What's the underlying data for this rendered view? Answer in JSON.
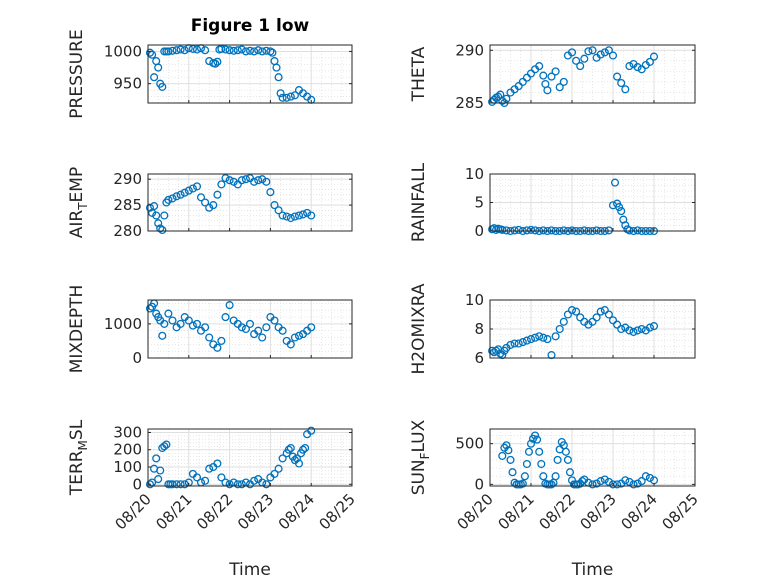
{
  "figure": {
    "title": "Figure 1 low",
    "marker_color": "#0072BD"
  },
  "chart_data": [
    {
      "type": "scatter",
      "title": "Figure 1 low",
      "ylabel": "PRESSURE",
      "ylim": [
        920,
        1010
      ],
      "yticks": [
        "950",
        "1000"
      ],
      "ytick_values": [
        950,
        1000
      ],
      "xlim": [
        0,
        5
      ],
      "grid": true,
      "x": [
        0.05,
        0.1,
        0.15,
        0.2,
        0.25,
        0.3,
        0.35,
        0.4,
        0.45,
        0.5,
        0.6,
        0.7,
        0.8,
        0.9,
        1.0,
        1.1,
        1.2,
        1.3,
        1.4,
        1.5,
        1.6,
        1.65,
        1.7,
        1.75,
        1.8,
        1.9,
        2.0,
        2.1,
        2.2,
        2.3,
        2.4,
        2.5,
        2.6,
        2.7,
        2.8,
        2.9,
        3.0,
        3.05,
        3.1,
        3.15,
        3.2,
        3.25,
        3.3,
        3.4,
        3.5,
        3.6,
        3.7,
        3.8,
        3.9,
        4.0
      ],
      "y": [
        998,
        995,
        960,
        985,
        975,
        950,
        945,
        1000,
        1000,
        1000,
        1001,
        1002,
        1003,
        1002,
        1005,
        1004,
        1003,
        1005,
        1002,
        985,
        982,
        981,
        984,
        1003,
        1004,
        1003,
        1002,
        1001,
        1002,
        1003,
        1000,
        1001,
        1000,
        1002,
        1000,
        1001,
        1000,
        998,
        985,
        975,
        960,
        935,
        928,
        928,
        930,
        932,
        940,
        935,
        930,
        925
      ]
    },
    {
      "type": "scatter",
      "ylabel": "THETA",
      "ylim": [
        285,
        290.5
      ],
      "yticks": [
        "285",
        "290"
      ],
      "ytick_values": [
        285,
        290
      ],
      "xlim": [
        0,
        5
      ],
      "grid": true,
      "x": [
        0.05,
        0.1,
        0.15,
        0.2,
        0.25,
        0.3,
        0.35,
        0.4,
        0.5,
        0.6,
        0.7,
        0.8,
        0.9,
        1.0,
        1.1,
        1.2,
        1.3,
        1.35,
        1.4,
        1.5,
        1.6,
        1.7,
        1.8,
        1.9,
        2.0,
        2.1,
        2.2,
        2.3,
        2.4,
        2.5,
        2.6,
        2.7,
        2.8,
        2.9,
        3.0,
        3.1,
        3.2,
        3.3,
        3.4,
        3.5,
        3.6,
        3.7,
        3.8,
        3.9,
        4.0
      ],
      "y": [
        285.1,
        285.3,
        285.5,
        285.6,
        285.8,
        285.2,
        285.0,
        285.4,
        286.0,
        286.3,
        286.6,
        287.0,
        287.4,
        287.8,
        288.2,
        288.5,
        287.6,
        286.8,
        286.2,
        287.5,
        288.0,
        286.5,
        287.0,
        289.5,
        289.8,
        289.0,
        288.5,
        289.2,
        289.9,
        290.0,
        289.3,
        289.6,
        289.8,
        290.0,
        289.5,
        287.5,
        286.9,
        286.3,
        288.5,
        288.7,
        288.4,
        288.2,
        288.6,
        288.9,
        289.4
      ]
    },
    {
      "type": "scatter",
      "ylabel": "AIR_TEMP",
      "ylabel_main": "AIR",
      "ylabel_sub": "T",
      "ylabel_tail": "EMP",
      "ylim": [
        280,
        291
      ],
      "yticks": [
        "280",
        "285",
        "290"
      ],
      "ytick_values": [
        280,
        285,
        290
      ],
      "xlim": [
        0,
        5
      ],
      "grid": true,
      "x": [
        0.05,
        0.1,
        0.15,
        0.2,
        0.25,
        0.3,
        0.35,
        0.4,
        0.45,
        0.5,
        0.6,
        0.7,
        0.8,
        0.9,
        1.0,
        1.1,
        1.2,
        1.3,
        1.4,
        1.5,
        1.6,
        1.7,
        1.8,
        1.9,
        2.0,
        2.1,
        2.2,
        2.3,
        2.4,
        2.5,
        2.6,
        2.7,
        2.8,
        2.9,
        3.0,
        3.1,
        3.2,
        3.3,
        3.4,
        3.5,
        3.6,
        3.7,
        3.8,
        3.9,
        4.0
      ],
      "y": [
        284.5,
        283.5,
        284.8,
        283.0,
        281.5,
        280.5,
        280.2,
        283.0,
        285.5,
        286.0,
        286.3,
        286.7,
        287.0,
        287.4,
        287.8,
        288.2,
        288.6,
        286.5,
        285.5,
        284.5,
        285.0,
        287.0,
        289.0,
        290.2,
        289.8,
        289.5,
        289.0,
        289.8,
        290.0,
        290.2,
        289.5,
        289.8,
        290.0,
        289.5,
        287.5,
        285.0,
        284.0,
        283.0,
        282.8,
        282.5,
        282.8,
        283.0,
        283.2,
        283.5,
        283.0
      ]
    },
    {
      "type": "scatter",
      "ylabel": "RAINFALL",
      "ylim": [
        0,
        10
      ],
      "yticks": [
        "0",
        "5",
        "10"
      ],
      "ytick_values": [
        0,
        5,
        10
      ],
      "xlim": [
        0,
        5
      ],
      "grid": true,
      "x": [
        0.05,
        0.1,
        0.15,
        0.2,
        0.25,
        0.3,
        0.4,
        0.5,
        0.6,
        0.7,
        0.8,
        0.9,
        1.0,
        1.1,
        1.2,
        1.3,
        1.4,
        1.5,
        1.6,
        1.7,
        1.8,
        1.9,
        2.0,
        2.1,
        2.2,
        2.3,
        2.4,
        2.5,
        2.6,
        2.7,
        2.8,
        2.9,
        3.0,
        3.05,
        3.1,
        3.15,
        3.2,
        3.25,
        3.3,
        3.35,
        3.4,
        3.5,
        3.6,
        3.7,
        3.8,
        3.9,
        4.0
      ],
      "y": [
        0.3,
        0.5,
        0.2,
        0.4,
        0.3,
        0.2,
        0.1,
        0.0,
        0.1,
        0.2,
        0.0,
        0.1,
        0.2,
        0.1,
        0.0,
        0.1,
        0.0,
        0.1,
        0.0,
        0.0,
        0.1,
        0.0,
        0.1,
        0.0,
        0.0,
        0.1,
        0.0,
        0.0,
        0.1,
        0.0,
        0.0,
        0.1,
        4.5,
        8.5,
        4.8,
        4.2,
        3.5,
        2.0,
        1.0,
        0.3,
        0.1,
        0.0,
        0.1,
        0.0,
        0.0,
        0.0,
        0.0
      ]
    },
    {
      "type": "scatter",
      "ylabel": "MIXDEPTH",
      "ylim": [
        0,
        1700
      ],
      "yticks": [
        "0",
        "1000"
      ],
      "ytick_values": [
        0,
        1000
      ],
      "xlim": [
        0,
        5
      ],
      "grid": true,
      "x": [
        0.05,
        0.1,
        0.15,
        0.2,
        0.25,
        0.3,
        0.35,
        0.4,
        0.5,
        0.6,
        0.7,
        0.8,
        0.9,
        1.0,
        1.1,
        1.2,
        1.3,
        1.4,
        1.5,
        1.6,
        1.7,
        1.8,
        1.9,
        2.0,
        2.1,
        2.2,
        2.3,
        2.4,
        2.5,
        2.6,
        2.7,
        2.8,
        2.9,
        3.0,
        3.1,
        3.2,
        3.3,
        3.4,
        3.5,
        3.6,
        3.7,
        3.8,
        3.9,
        4.0
      ],
      "y": [
        1450,
        1500,
        1600,
        1300,
        1200,
        1100,
        650,
        1000,
        1300,
        1100,
        900,
        1000,
        1200,
        1100,
        950,
        1000,
        800,
        900,
        600,
        400,
        300,
        500,
        1200,
        1550,
        1100,
        1000,
        900,
        850,
        1000,
        700,
        800,
        600,
        900,
        1200,
        1100,
        900,
        800,
        500,
        400,
        600,
        650,
        700,
        800,
        900
      ]
    },
    {
      "type": "scatter",
      "ylabel": "H2OMIXRA",
      "ylim": [
        6,
        10
      ],
      "yticks": [
        "6",
        "8",
        "10"
      ],
      "ytick_values": [
        6,
        8,
        10
      ],
      "xlim": [
        0,
        5
      ],
      "grid": true,
      "x": [
        0.05,
        0.1,
        0.15,
        0.2,
        0.25,
        0.3,
        0.35,
        0.4,
        0.5,
        0.6,
        0.7,
        0.8,
        0.9,
        1.0,
        1.1,
        1.2,
        1.3,
        1.4,
        1.5,
        1.6,
        1.7,
        1.8,
        1.9,
        2.0,
        2.1,
        2.2,
        2.3,
        2.4,
        2.5,
        2.6,
        2.7,
        2.8,
        2.9,
        3.0,
        3.1,
        3.2,
        3.3,
        3.4,
        3.5,
        3.6,
        3.7,
        3.8,
        3.9,
        4.0
      ],
      "y": [
        6.5,
        6.4,
        6.5,
        6.6,
        6.3,
        6.2,
        6.5,
        6.7,
        6.9,
        7.0,
        7.0,
        7.1,
        7.2,
        7.3,
        7.4,
        7.5,
        7.4,
        7.3,
        6.2,
        7.5,
        8.0,
        8.5,
        9.0,
        9.3,
        9.2,
        8.8,
        8.5,
        8.3,
        8.5,
        8.8,
        9.2,
        9.3,
        9.0,
        8.6,
        8.3,
        8.0,
        8.1,
        7.9,
        7.8,
        7.9,
        8.0,
        7.9,
        8.1,
        8.2
      ]
    },
    {
      "type": "scatter",
      "ylabel": "TERR_MSL",
      "ylabel_main": "TERR",
      "ylabel_sub": "M",
      "ylabel_tail": "SL",
      "ylim": [
        -10,
        320
      ],
      "yticks": [
        "0",
        "100",
        "200",
        "300"
      ],
      "ytick_values": [
        0,
        100,
        200,
        300
      ],
      "xlim": [
        0,
        5
      ],
      "grid": true,
      "xticks": [
        "08/20",
        "08/21",
        "08/22",
        "08/23",
        "08/24",
        "08/25"
      ],
      "xtick_values": [
        0,
        1,
        2,
        3,
        4,
        5
      ],
      "xlabel": "Time",
      "x": [
        0.05,
        0.1,
        0.15,
        0.2,
        0.25,
        0.3,
        0.35,
        0.4,
        0.45,
        0.5,
        0.55,
        0.6,
        0.7,
        0.8,
        0.9,
        1.0,
        1.1,
        1.2,
        1.3,
        1.4,
        1.5,
        1.6,
        1.7,
        1.8,
        1.9,
        2.0,
        2.1,
        2.2,
        2.3,
        2.4,
        2.5,
        2.6,
        2.7,
        2.8,
        2.9,
        3.0,
        3.1,
        3.2,
        3.3,
        3.4,
        3.45,
        3.5,
        3.55,
        3.6,
        3.65,
        3.7,
        3.75,
        3.8,
        3.85,
        3.9,
        4.0
      ],
      "y": [
        0,
        10,
        90,
        150,
        30,
        80,
        210,
        220,
        230,
        0,
        0,
        0,
        0,
        0,
        0,
        10,
        60,
        40,
        10,
        20,
        90,
        100,
        120,
        40,
        10,
        0,
        10,
        0,
        0,
        10,
        0,
        20,
        30,
        10,
        0,
        40,
        60,
        90,
        150,
        180,
        200,
        210,
        160,
        140,
        150,
        120,
        180,
        200,
        210,
        290,
        310
      ]
    },
    {
      "type": "scatter",
      "ylabel": "SUN_FLUX",
      "ylabel_main": "SUN",
      "ylabel_sub": "F",
      "ylabel_tail": "LUX",
      "ylim": [
        -20,
        680
      ],
      "yticks": [
        "0",
        "500"
      ],
      "ytick_values": [
        0,
        500
      ],
      "xlim": [
        0,
        5
      ],
      "grid": true,
      "xticks": [
        "08/20",
        "08/21",
        "08/22",
        "08/23",
        "08/24",
        "08/25"
      ],
      "xtick_values": [
        0,
        1,
        2,
        3,
        4,
        5
      ],
      "xlabel": "Time",
      "x": [
        0.3,
        0.35,
        0.4,
        0.45,
        0.5,
        0.55,
        0.6,
        0.65,
        0.7,
        0.75,
        0.8,
        0.85,
        0.9,
        0.95,
        1.0,
        1.05,
        1.1,
        1.15,
        1.2,
        1.25,
        1.3,
        1.35,
        1.4,
        1.45,
        1.5,
        1.55,
        1.6,
        1.65,
        1.7,
        1.75,
        1.8,
        1.85,
        1.9,
        1.95,
        2.0,
        2.05,
        2.1,
        2.15,
        2.2,
        2.25,
        2.3,
        2.4,
        2.5,
        2.6,
        2.7,
        2.8,
        2.9,
        3.0,
        3.1,
        3.2,
        3.3,
        3.4,
        3.5,
        3.6,
        3.7,
        3.8,
        3.9,
        4.0
      ],
      "y": [
        350,
        450,
        480,
        420,
        300,
        150,
        20,
        0,
        0,
        0,
        10,
        100,
        250,
        400,
        500,
        560,
        600,
        550,
        400,
        250,
        100,
        10,
        0,
        0,
        0,
        20,
        100,
        300,
        430,
        520,
        480,
        400,
        300,
        150,
        50,
        0,
        0,
        0,
        10,
        40,
        60,
        20,
        0,
        10,
        40,
        60,
        30,
        0,
        0,
        10,
        50,
        30,
        0,
        10,
        40,
        100,
        80,
        50
      ]
    }
  ]
}
